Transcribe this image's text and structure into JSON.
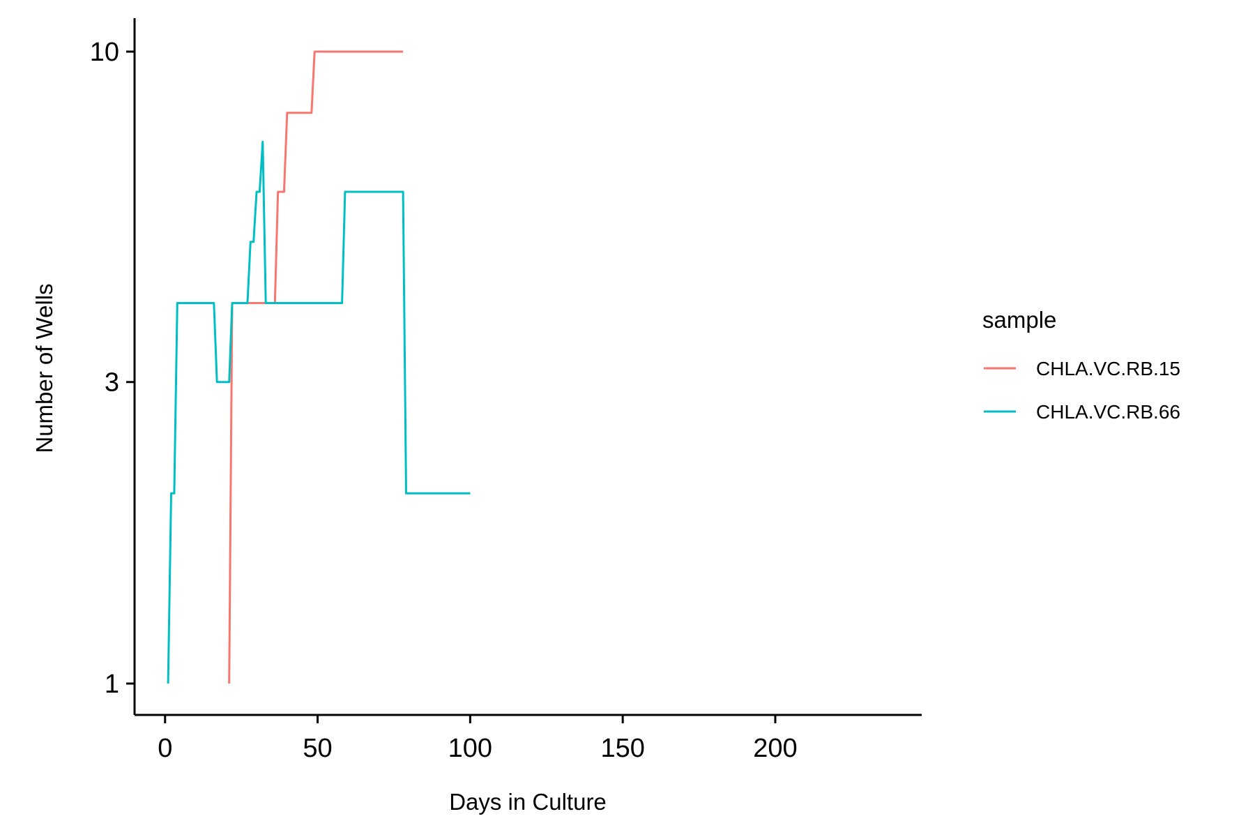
{
  "chart_data": {
    "type": "line",
    "title": "",
    "xlabel": "Days in Culture",
    "ylabel": "Number of Wells",
    "x_scale": "linear",
    "y_scale": "log",
    "xlim": [
      -10,
      248
    ],
    "ylim": [
      0.9,
      11.1
    ],
    "x_ticks": [
      0,
      50,
      100,
      150,
      200
    ],
    "y_ticks": [
      1,
      3,
      10
    ],
    "grid": false,
    "legend": {
      "title": "sample",
      "position": "right"
    },
    "series": [
      {
        "name": "CHLA.VC.RB.15",
        "color": "#F8766D",
        "points": [
          [
            21,
            1
          ],
          [
            22,
            4
          ],
          [
            36,
            4
          ],
          [
            37,
            6
          ],
          [
            39,
            6
          ],
          [
            40,
            8
          ],
          [
            48,
            8
          ],
          [
            49,
            10
          ],
          [
            78,
            10
          ]
        ]
      },
      {
        "name": "CHLA.VC.RB.66",
        "color": "#00BFC4",
        "points": [
          [
            1,
            1
          ],
          [
            2,
            2
          ],
          [
            3,
            2
          ],
          [
            4,
            4
          ],
          [
            16,
            4
          ],
          [
            17,
            3
          ],
          [
            21,
            3
          ],
          [
            22,
            4
          ],
          [
            27,
            4
          ],
          [
            28,
            5
          ],
          [
            29,
            5
          ],
          [
            30,
            6
          ],
          [
            31,
            6
          ],
          [
            32,
            7.2
          ],
          [
            33,
            4
          ],
          [
            58,
            4
          ],
          [
            59,
            6
          ],
          [
            78,
            6
          ],
          [
            79,
            2
          ],
          [
            100,
            2
          ]
        ]
      }
    ]
  }
}
